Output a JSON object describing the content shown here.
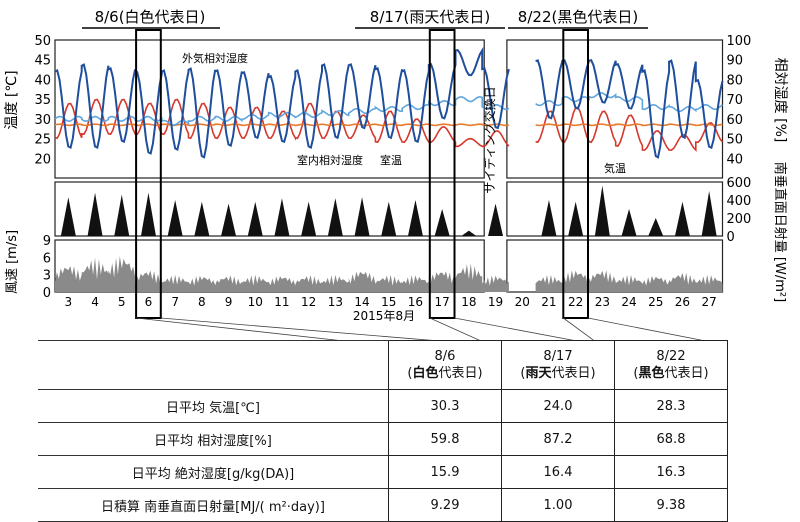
{
  "chart_data": [
    {
      "type": "line",
      "panel": "temperature-humidity",
      "ylabel_left": "温度 [℃]",
      "ylabel_right": "相対湿度 [%]",
      "ylim_left": [
        15,
        50
      ],
      "ylim_right": [
        30,
        100
      ],
      "yticks_left": [
        "20",
        "25",
        "30",
        "35",
        "40",
        "45",
        "50"
      ],
      "yticks_right": [
        "40",
        "50",
        "60",
        "70",
        "80",
        "90",
        "100"
      ],
      "annotations": [
        "外気相対湿度",
        "室内相対湿度",
        "室温",
        "気温"
      ],
      "series": [
        {
          "name": "外気相対湿度",
          "axis": "right",
          "color": "#1f4e9c",
          "daily_min": [
            45,
            45,
            48,
            42,
            44,
            40,
            46,
            50,
            48,
            45,
            50,
            55,
            50,
            48,
            60,
            82,
            55,
            null,
            60,
            65,
            68,
            65,
            40,
            50,
            45
          ],
          "daily_max": [
            85,
            88,
            86,
            84,
            85,
            86,
            85,
            84,
            82,
            85,
            88,
            88,
            86,
            85,
            88,
            95,
            86,
            null,
            90,
            90,
            90,
            88,
            85,
            90,
            80
          ]
        },
        {
          "name": "室内相対湿度",
          "axis": "right",
          "color": "#5fa6dc",
          "daily_mean": [
            60,
            60,
            60,
            60,
            58,
            60,
            60,
            61,
            62,
            62,
            63,
            64,
            65,
            66,
            68,
            70,
            66,
            null,
            68,
            70,
            72,
            70,
            66,
            65,
            66
          ]
        },
        {
          "name": "気温",
          "axis": "left",
          "color": "#d6382b",
          "daily_min": [
            25,
            26,
            26,
            26,
            26,
            25,
            25,
            25,
            25,
            25,
            25,
            25,
            24,
            24,
            24,
            23,
            23,
            null,
            24,
            24,
            24,
            23,
            22,
            22,
            24
          ],
          "daily_max": [
            34,
            35,
            35,
            34,
            35,
            34,
            33,
            33,
            32,
            34,
            32,
            31,
            32,
            30,
            28,
            25,
            27,
            null,
            32,
            33,
            32,
            31,
            27,
            26,
            29
          ]
        },
        {
          "name": "室温",
          "axis": "left",
          "color": "#e87a2e",
          "daily_mean": [
            28.5,
            28.5,
            28.5,
            28.5,
            28.5,
            28.5,
            28.5,
            28.5,
            28.5,
            28.5,
            28.5,
            28.5,
            28.5,
            28.5,
            28.5,
            28.5,
            28.5,
            null,
            28.5,
            28.5,
            28.5,
            28.5,
            28.5,
            28.5,
            28.5
          ]
        }
      ]
    },
    {
      "type": "area",
      "panel": "solar-radiation",
      "ylabel": "南垂直面日射量 [W/m²]",
      "ylim": [
        0,
        600
      ],
      "yticks": [
        "0",
        "200",
        "400",
        "600"
      ],
      "series": [
        {
          "name": "南垂直面日射量",
          "color": "#111111",
          "daily_peak": [
            430,
            480,
            460,
            480,
            400,
            380,
            360,
            380,
            420,
            380,
            420,
            430,
            380,
            400,
            300,
            60,
            360,
            null,
            400,
            380,
            560,
            300,
            200,
            380,
            500
          ]
        }
      ]
    },
    {
      "type": "area",
      "panel": "wind-speed",
      "ylabel": "風速 [m/s]",
      "ylim": [
        0,
        9
      ],
      "yticks": [
        "0",
        "3",
        "6",
        "9"
      ],
      "series": [
        {
          "name": "風速",
          "color": "#8a8a8a",
          "daily_peak": [
            5,
            6,
            6.5,
            4,
            3,
            3,
            3,
            3,
            3,
            3,
            3,
            4,
            3,
            3,
            4,
            5,
            3,
            null,
            3,
            4,
            4,
            3,
            3,
            3.5,
            3
          ]
        }
      ]
    }
  ],
  "header": {
    "periods": [
      {
        "label": "8/6(白色代表日)"
      },
      {
        "label": "8/17(雨天代表日)"
      },
      {
        "label": "8/22(黒色代表日)"
      }
    ]
  },
  "axis": {
    "days": [
      "3",
      "4",
      "5",
      "6",
      "7",
      "8",
      "9",
      "10",
      "11",
      "12",
      "13",
      "14",
      "15",
      "16",
      "17",
      "18",
      "19",
      "20",
      "21",
      "22",
      "23",
      "24",
      "25",
      "26",
      "27"
    ],
    "month_label": "2015年8月",
    "gap_label": "サイディング交換日"
  },
  "table": {
    "headers": [
      {
        "date": "8/6",
        "kind_bold": "白色",
        "kind_rest": "代表日"
      },
      {
        "date": "8/17",
        "kind_bold": "雨天",
        "kind_rest": "代表日"
      },
      {
        "date": "8/22",
        "kind_bold": "黒色",
        "kind_rest": "代表日"
      }
    ],
    "rows": [
      {
        "label": "日平均 気温[℃]",
        "values": [
          "30.3",
          "24.0",
          "28.3"
        ]
      },
      {
        "label": "日平均 相対湿度[%]",
        "values": [
          "59.8",
          "87.2",
          "68.8"
        ]
      },
      {
        "label": "日平均 絶対湿度[g/kg(DA)]",
        "values": [
          "15.9",
          "16.4",
          "16.3"
        ]
      },
      {
        "label": "日積算 南垂直面日射量[MJ/( m²·day)]",
        "values": [
          "9.29",
          "1.00",
          "9.38"
        ]
      }
    ]
  }
}
